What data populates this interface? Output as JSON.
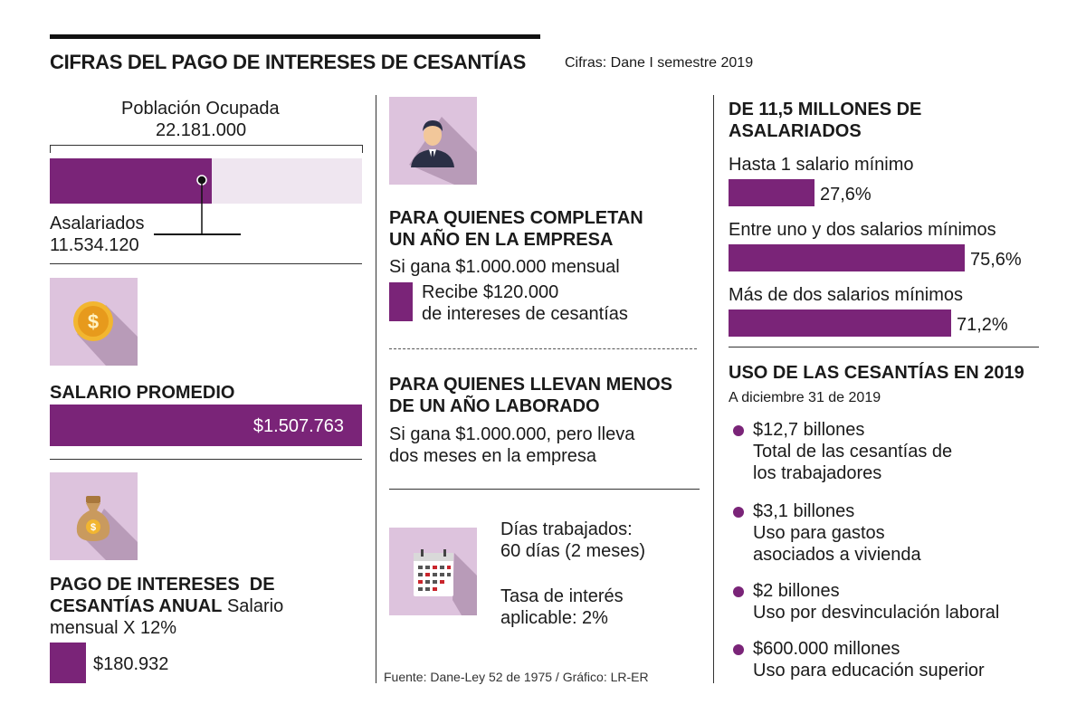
{
  "header": {
    "title": "CIFRAS DEL PAGO DE INTERESES DE CESANTÍAS",
    "source": "Cifras: Dane I semestre 2019"
  },
  "left": {
    "population_label": "Población Ocupada",
    "population_value": "22.181.000",
    "salaried_label": "Asalariados",
    "salaried_value": "11.534.120",
    "salary_title": "SALARIO PROMEDIO",
    "salary_value": "$1.507.763",
    "payment_title_1": "PAGO DE INTERESES  DE",
    "payment_title_2": "CESANTÍAS ANUAL",
    "payment_formula_1": "Salario",
    "payment_formula_2": "mensual X 12%",
    "payment_value": "$180.932"
  },
  "middle": {
    "year_title_1": "PARA QUIENES COMPLETAN",
    "year_title_2": "UN AÑO EN LA EMPRESA",
    "year_income": "Si gana $1.000.000 mensual",
    "year_receive_1": "Recibe $120.000",
    "year_receive_2": "de intereses de cesantías",
    "less_title_1": "PARA QUIENES LLEVAN MENOS",
    "less_title_2": "DE UN AÑO LABORADO",
    "less_text_1": "Si gana $1.000.000, pero lleva",
    "less_text_2": "dos meses en la empresa",
    "days_label": "Días trabajados:",
    "days_value": "60 días (2 meses)",
    "rate_label": "Tasa de interés",
    "rate_value": "aplicable: 2%",
    "footer": "Fuente: Dane-Ley 52 de 1975 / Gráfico: LR-ER"
  },
  "right": {
    "salaried_title_1": "DE 11,5 MILLONES DE",
    "salaried_title_2": "ASALARIADOS",
    "uses_title": "USO DE LAS CESANTÍAS EN 2019",
    "uses_date": "A diciembre 31 de 2019",
    "uses": [
      {
        "amount": "$12,7 billones",
        "desc_1": "Total de las cesantías de",
        "desc_2": "los trabajadores"
      },
      {
        "amount": "$3,1 billones",
        "desc_1": "Uso para gastos",
        "desc_2": "asociados a vivienda"
      },
      {
        "amount": "$2 billones",
        "desc_1": "Uso por desvinculación laboral",
        "desc_2": ""
      },
      {
        "amount": "$600.000 millones",
        "desc_1": "Uso para educación superior",
        "desc_2": ""
      }
    ]
  },
  "chart_data": [
    {
      "type": "bar",
      "title": "Población Ocupada",
      "categories": [
        "Asalariados"
      ],
      "values": [
        11534120
      ],
      "total": 22181000,
      "xlim": [
        0,
        22181000
      ]
    },
    {
      "type": "bar",
      "title": "DE 11,5 MILLONES DE ASALARIADOS",
      "categories": [
        "Hasta 1 salario mínimo",
        "Entre uno y dos salarios mínimos",
        "Más de dos salarios mínimos"
      ],
      "values": [
        27.6,
        75.6,
        71.2
      ],
      "value_labels": [
        "27,6%",
        "75,6%",
        "71,2%"
      ],
      "unit": "%",
      "xlim": [
        0,
        100
      ]
    }
  ],
  "colors": {
    "accent": "#7a2478",
    "icon_bg": "#ddc3dd",
    "bar_bg": "#efe6f0"
  }
}
